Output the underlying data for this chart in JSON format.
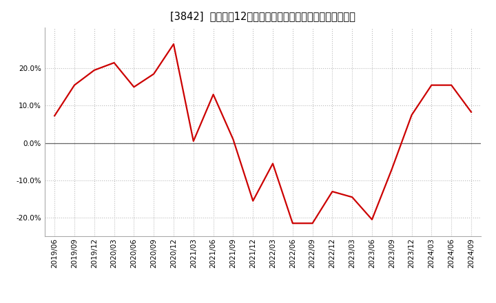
{
  "title": "[3842]  売上高の12か月移動合計の対前年同期増減率の推移",
  "line_color": "#cc0000",
  "background_color": "#ffffff",
  "plot_background": "#ffffff",
  "grid_color": "#bbbbbb",
  "dates": [
    "2019/06",
    "2019/09",
    "2019/12",
    "2020/03",
    "2020/06",
    "2020/09",
    "2020/12",
    "2021/03",
    "2021/06",
    "2021/09",
    "2021/12",
    "2022/03",
    "2022/06",
    "2022/09",
    "2022/12",
    "2023/03",
    "2023/06",
    "2023/09",
    "2023/12",
    "2024/03",
    "2024/06",
    "2024/09"
  ],
  "values": [
    0.073,
    0.155,
    0.195,
    0.215,
    0.15,
    0.185,
    0.265,
    0.005,
    0.13,
    0.01,
    -0.155,
    -0.055,
    -0.215,
    -0.215,
    -0.13,
    -0.145,
    -0.205,
    -0.07,
    0.075,
    0.155,
    0.155,
    0.083
  ],
  "ylim": [
    -0.25,
    0.31
  ],
  "yticks": [
    -0.2,
    -0.1,
    0.0,
    0.1,
    0.2
  ],
  "title_fontsize": 10.5,
  "axis_fontsize": 7.5,
  "line_width": 1.6
}
